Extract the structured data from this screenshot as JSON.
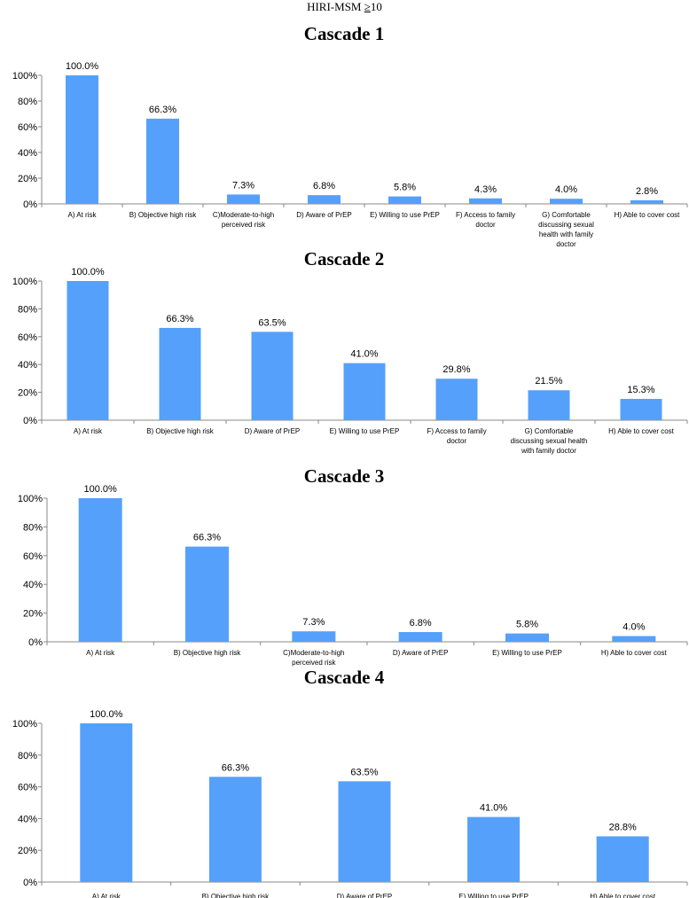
{
  "header": {
    "prefix": "HIRI-MSM ",
    "ge_symbol": "≥",
    "threshold": "10"
  },
  "colors": {
    "bar": "#55A0FB",
    "axis": "#888888"
  },
  "chart_data": [
    {
      "type": "bar",
      "title": "Cascade 1",
      "xlabel": "",
      "ylabel": "",
      "ylim": [
        0,
        100
      ],
      "yticks": [
        "0%",
        "20%",
        "40%",
        "60%",
        "80%",
        "100%"
      ],
      "categories": [
        "A) At risk",
        "B) Objective high risk",
        "C)Moderate-to-high perceived risk",
        "D) Aware of PrEP",
        "E) Willing to use PrEP",
        "F) Access to family doctor",
        "G) Comfortable discussing sexual health with family doctor",
        "H) Able to cover cost"
      ],
      "category_lines": [
        [
          "A) At risk"
        ],
        [
          "B) Objective high risk"
        ],
        [
          "C)Moderate-to-high",
          "perceived risk"
        ],
        [
          "D) Aware of PrEP"
        ],
        [
          "E) Willing to use PrEP"
        ],
        [
          "F) Access to family",
          "doctor"
        ],
        [
          "G) Comfortable",
          "discussing sexual",
          "health with family",
          "doctor"
        ],
        [
          "H) Able to cover cost"
        ]
      ],
      "values": [
        100.0,
        66.3,
        7.3,
        6.8,
        5.8,
        4.3,
        4.0,
        2.8
      ],
      "labels": [
        "100.0%",
        "66.3%",
        "7.3%",
        "6.8%",
        "5.8%",
        "4.3%",
        "4.0%",
        "2.8%"
      ]
    },
    {
      "type": "bar",
      "title": "Cascade 2",
      "xlabel": "",
      "ylabel": "",
      "ylim": [
        0,
        100
      ],
      "yticks": [
        "0%",
        "20%",
        "40%",
        "60%",
        "80%",
        "100%"
      ],
      "categories": [
        "A) At risk",
        "B) Objective high risk",
        "D) Aware of PrEP",
        "E) Willing to use PrEP",
        "F) Access to family doctor",
        "G) Comfortable discussing sexual health with family doctor",
        "H) Able to cover cost"
      ],
      "category_lines": [
        [
          "A) At risk"
        ],
        [
          "B) Objective high risk"
        ],
        [
          "D) Aware of PrEP"
        ],
        [
          "E) Willing to use PrEP"
        ],
        [
          "F) Access to family",
          "doctor"
        ],
        [
          "G) Comfortable",
          "discussing sexual health",
          "with family doctor"
        ],
        [
          "H) Able to cover cost"
        ]
      ],
      "values": [
        100.0,
        66.3,
        63.5,
        41.0,
        29.8,
        21.5,
        15.3
      ],
      "labels": [
        "100.0%",
        "66.3%",
        "63.5%",
        "41.0%",
        "29.8%",
        "21.5%",
        "15.3%"
      ]
    },
    {
      "type": "bar",
      "title": "Cascade 3",
      "xlabel": "",
      "ylabel": "",
      "ylim": [
        0,
        100
      ],
      "yticks": [
        "0%",
        "20%",
        "40%",
        "60%",
        "80%",
        "100%"
      ],
      "categories": [
        "A) At risk",
        "B) Objective high risk",
        "C)Moderate-to-high perceived risk",
        "D) Aware of PrEP",
        "E) Willing to use PrEP",
        "H) Able to cover cost"
      ],
      "category_lines": [
        [
          "A) At risk"
        ],
        [
          "B) Objective high risk"
        ],
        [
          "C)Moderate-to-high",
          "perceived risk"
        ],
        [
          "D) Aware of PrEP"
        ],
        [
          "E) Willing to use PrEP"
        ],
        [
          "H) Able to cover cost"
        ]
      ],
      "values": [
        100.0,
        66.3,
        7.3,
        6.8,
        5.8,
        4.0
      ],
      "labels": [
        "100.0%",
        "66.3%",
        "7.3%",
        "6.8%",
        "5.8%",
        "4.0%"
      ]
    },
    {
      "type": "bar",
      "title": "Cascade 4",
      "xlabel": "",
      "ylabel": "",
      "ylim": [
        0,
        100
      ],
      "yticks": [
        "0%",
        "20%",
        "40%",
        "60%",
        "80%",
        "100%"
      ],
      "categories": [
        "A) At risk",
        "B) Objective high risk",
        "D) Aware of PrEP",
        "E) Willing to use PrEP",
        "H) Able to cover cost"
      ],
      "category_lines": [
        [
          "A) At risk"
        ],
        [
          "B) Objective high risk"
        ],
        [
          "D) Aware of PrEP"
        ],
        [
          "E) Willing to use PrEP"
        ],
        [
          "H) Able to cover cost"
        ]
      ],
      "values": [
        100.0,
        66.3,
        63.5,
        41.0,
        28.8
      ],
      "labels": [
        "100.0%",
        "66.3%",
        "63.5%",
        "41.0%",
        "28.8%"
      ]
    }
  ]
}
